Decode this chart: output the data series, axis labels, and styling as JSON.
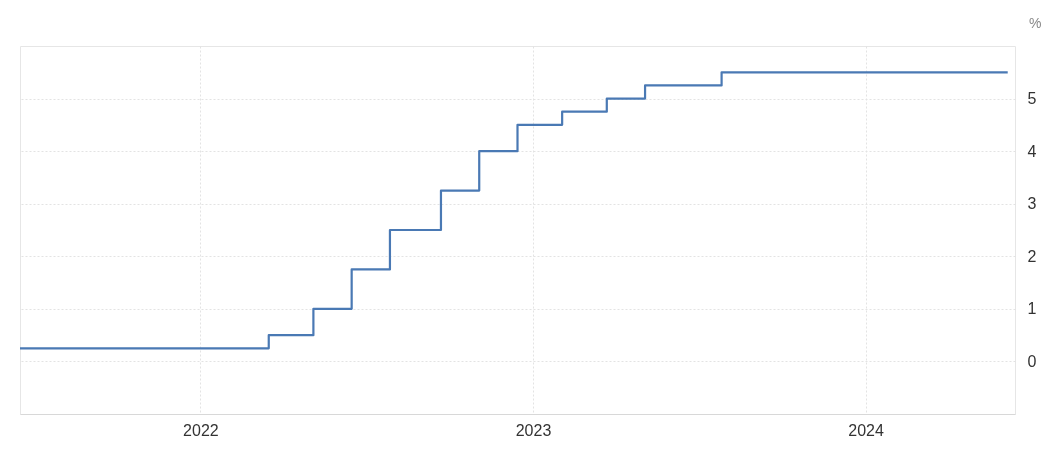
{
  "chart_data": {
    "type": "step",
    "ylabel": "%",
    "x": [
      "2021-06-17",
      "2022-03-17",
      "2022-05-05",
      "2022-06-16",
      "2022-07-28",
      "2022-09-22",
      "2022-11-03",
      "2022-12-15",
      "2023-02-02",
      "2023-03-23",
      "2023-05-04",
      "2023-07-27",
      "2024-06-05"
    ],
    "series": [
      {
        "color": "#4a79b4",
        "values": [
          0.25,
          0.5,
          1.0,
          1.75,
          2.5,
          3.25,
          4.0,
          4.5,
          4.75,
          5.0,
          5.25,
          5.5,
          5.5
        ]
      }
    ],
    "xlim": [
      "2021-06-17",
      "2024-06-13"
    ],
    "xticks": [
      {
        "value": "2022",
        "label": "2022"
      },
      {
        "value": "2023",
        "label": "2023"
      },
      {
        "value": "2024",
        "label": "2024"
      }
    ],
    "ylim": [
      -1,
      6
    ],
    "yticks": [
      0,
      1,
      2,
      3,
      4,
      5
    ],
    "grid": true
  }
}
